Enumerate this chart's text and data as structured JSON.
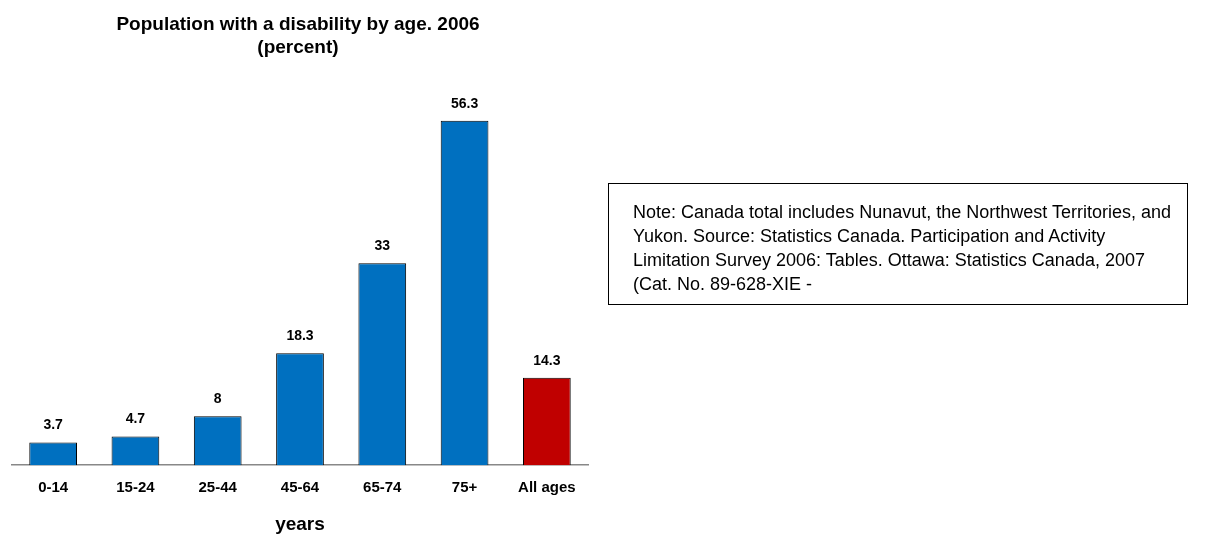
{
  "chart_data": {
    "type": "bar",
    "title": "Population with a disability by age. 2006 (percent)",
    "xlabel": "years",
    "categories": [
      "0-14",
      "15-24",
      "25-44",
      "45-64",
      "65-74",
      "75+",
      "All ages"
    ],
    "values": [
      3.7,
      4.7,
      8,
      18.3,
      33,
      56.3,
      14.3
    ],
    "colors": [
      "#0070c0",
      "#0070c0",
      "#0070c0",
      "#0070c0",
      "#0070c0",
      "#0070c0",
      "#c00000"
    ],
    "data_labels": true,
    "grid": false,
    "legend": false,
    "annotations": [
      "Note: Canada total includes Nunavut, the Northwest Territories, and Yukon. Source: Statistics Canada. Participation and Activity Limitation Survey 2006: Tables. Ottawa: Statistics Canada, 2007 (Cat. No. 89-628-XIE -"
    ]
  }
}
